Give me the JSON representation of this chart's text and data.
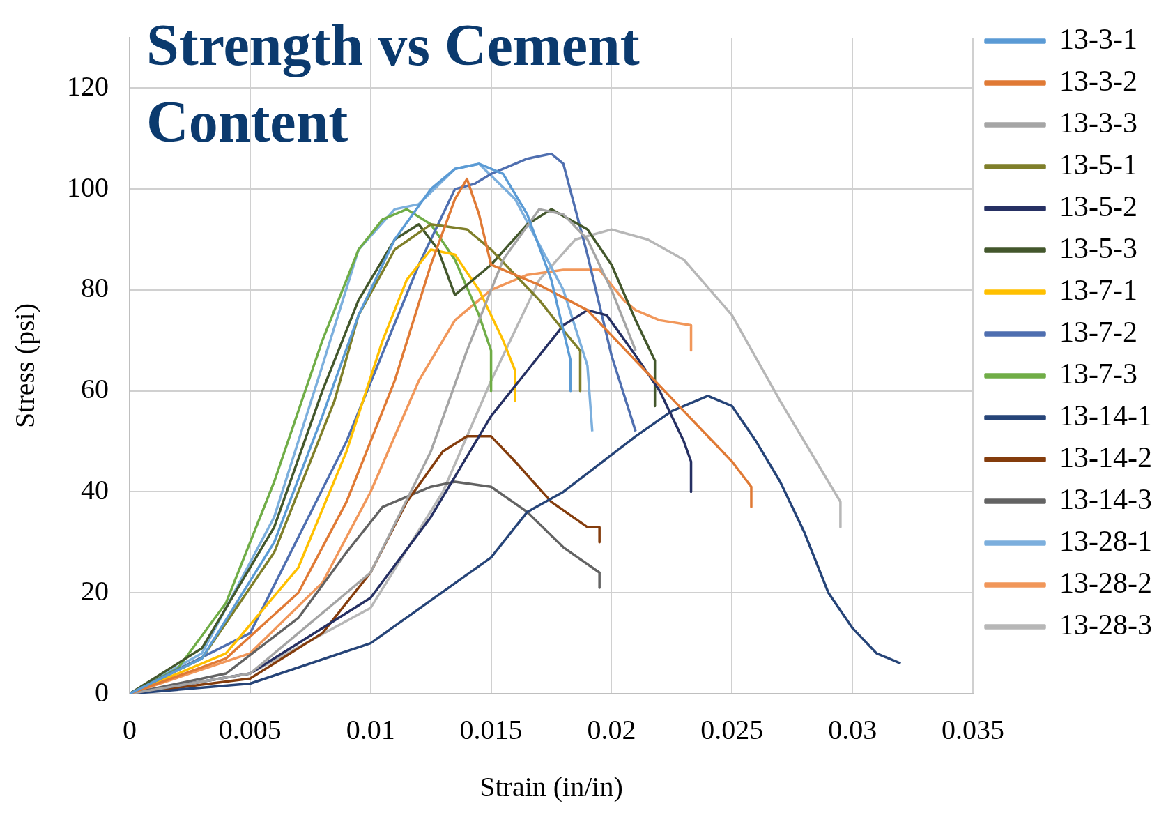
{
  "chart_data": {
    "type": "line",
    "title": "Strength vs Cement Content",
    "xlabel": "Strain (in/in)",
    "ylabel": "Stress (psi)",
    "xlim": [
      0,
      0.035
    ],
    "xticks": [
      0,
      0.005,
      0.01,
      0.015,
      0.02,
      0.025,
      0.03,
      0.035
    ],
    "ylim": [
      0,
      130
    ],
    "yticks": [
      0,
      20,
      40,
      60,
      80,
      100,
      120
    ],
    "grid": true,
    "legend": "right",
    "marker": "none",
    "line_style": "solid",
    "series": [
      {
        "name": "13-3-1",
        "color": "#5b9bd5",
        "x": [
          0,
          0.003,
          0.006,
          0.008,
          0.0095,
          0.011,
          0.0125,
          0.0135,
          0.0145,
          0.0155,
          0.0165,
          0.0175,
          0.018,
          0.0183,
          0.0183
        ],
        "values": [
          0,
          7,
          30,
          55,
          75,
          90,
          100,
          104,
          105,
          103,
          95,
          82,
          72,
          66,
          60
        ]
      },
      {
        "name": "13-3-2",
        "color": "#e07a35",
        "x": [
          0,
          0.004,
          0.007,
          0.009,
          0.011,
          0.0125,
          0.0135,
          0.014,
          0.0145,
          0.015,
          0.017,
          0.019,
          0.021,
          0.023,
          0.025,
          0.0258,
          0.0258
        ],
        "values": [
          0,
          7,
          20,
          38,
          62,
          85,
          98,
          102,
          95,
          85,
          81,
          76,
          66,
          56,
          46,
          41,
          37
        ]
      },
      {
        "name": "13-3-3",
        "color": "#a5a5a5",
        "x": [
          0,
          0.005,
          0.01,
          0.0125,
          0.014,
          0.0155,
          0.017,
          0.018,
          0.019,
          0.02,
          0.021
        ],
        "values": [
          0,
          4,
          24,
          48,
          68,
          86,
          96,
          95,
          90,
          80,
          68
        ]
      },
      {
        "name": "13-5-1",
        "color": "#7f7f2a",
        "x": [
          0,
          0.003,
          0.006,
          0.0085,
          0.0095,
          0.011,
          0.0125,
          0.014,
          0.015,
          0.016,
          0.017,
          0.018,
          0.0187,
          0.0187
        ],
        "values": [
          0,
          7,
          28,
          58,
          75,
          88,
          93,
          92,
          88,
          83,
          78,
          72,
          68,
          60
        ]
      },
      {
        "name": "13-5-2",
        "color": "#263063",
        "x": [
          0,
          0.005,
          0.01,
          0.0125,
          0.015,
          0.0165,
          0.018,
          0.019,
          0.0198,
          0.021,
          0.022,
          0.023,
          0.0233,
          0.0233
        ],
        "values": [
          0,
          4,
          19,
          35,
          55,
          64,
          73,
          76,
          75,
          67,
          60,
          50,
          46,
          40
        ]
      },
      {
        "name": "13-5-3",
        "color": "#43572c",
        "x": [
          0,
          0.003,
          0.006,
          0.008,
          0.0095,
          0.011,
          0.012,
          0.0128,
          0.0135,
          0.015,
          0.0165,
          0.0175,
          0.019,
          0.02,
          0.021,
          0.0218,
          0.0218
        ],
        "values": [
          0,
          9,
          33,
          60,
          78,
          90,
          93,
          88,
          79,
          85,
          93,
          96,
          92,
          85,
          74,
          66,
          57
        ]
      },
      {
        "name": "13-7-1",
        "color": "#ffc000",
        "x": [
          0,
          0.004,
          0.007,
          0.009,
          0.0105,
          0.0115,
          0.0125,
          0.0135,
          0.0145,
          0.0155,
          0.016,
          0.016
        ],
        "values": [
          0,
          8,
          25,
          48,
          70,
          82,
          88,
          87,
          80,
          70,
          64,
          58
        ]
      },
      {
        "name": "13-7-2",
        "color": "#4f6fb0",
        "x": [
          0,
          0.005,
          0.009,
          0.012,
          0.0135,
          0.0143,
          0.015,
          0.0165,
          0.0175,
          0.018,
          0.019,
          0.02,
          0.021
        ],
        "values": [
          0,
          12,
          50,
          85,
          100,
          101,
          103,
          106,
          107,
          105,
          87,
          67,
          52
        ]
      },
      {
        "name": "13-7-3",
        "color": "#70ad47",
        "x": [
          0,
          0.002,
          0.004,
          0.006,
          0.008,
          0.0095,
          0.0105,
          0.0115,
          0.0125,
          0.0135,
          0.0145,
          0.015,
          0.015
        ],
        "values": [
          0,
          5,
          18,
          42,
          70,
          88,
          94,
          96,
          93,
          86,
          75,
          68,
          60
        ]
      },
      {
        "name": "13-14-1",
        "color": "#264478",
        "x": [
          0,
          0.005,
          0.01,
          0.015,
          0.0165,
          0.018,
          0.021,
          0.0225,
          0.024,
          0.025,
          0.026,
          0.027,
          0.028,
          0.029,
          0.03,
          0.031,
          0.032
        ],
        "values": [
          0,
          2,
          10,
          27,
          36,
          40,
          51,
          56,
          59,
          57,
          50,
          42,
          32,
          20,
          13,
          8,
          6
        ]
      },
      {
        "name": "13-14-2",
        "color": "#843c0c",
        "x": [
          0,
          0.005,
          0.008,
          0.01,
          0.0115,
          0.013,
          0.014,
          0.015,
          0.016,
          0.0175,
          0.019,
          0.0195,
          0.0195
        ],
        "values": [
          0,
          3,
          12,
          24,
          38,
          48,
          51,
          51,
          46,
          38,
          33,
          33,
          30
        ]
      },
      {
        "name": "13-14-3",
        "color": "#636363",
        "x": [
          0,
          0.004,
          0.007,
          0.009,
          0.0105,
          0.0125,
          0.0135,
          0.015,
          0.0165,
          0.018,
          0.0195,
          0.0195
        ],
        "values": [
          0,
          4,
          15,
          28,
          37,
          41,
          42,
          41,
          36,
          29,
          24,
          21
        ]
      },
      {
        "name": "13-28-1",
        "color": "#7cafdd",
        "x": [
          0,
          0.003,
          0.006,
          0.008,
          0.0095,
          0.011,
          0.012,
          0.0135,
          0.0145,
          0.016,
          0.018,
          0.019,
          0.0192
        ],
        "values": [
          0,
          8,
          35,
          65,
          88,
          96,
          97,
          104,
          105,
          98,
          80,
          65,
          52
        ]
      },
      {
        "name": "13-28-2",
        "color": "#f1975a",
        "x": [
          0,
          0.005,
          0.008,
          0.01,
          0.012,
          0.0135,
          0.015,
          0.0165,
          0.018,
          0.0195,
          0.0205,
          0.021,
          0.022,
          0.0233,
          0.0233
        ],
        "values": [
          0,
          8,
          22,
          40,
          62,
          74,
          80,
          83,
          84,
          84,
          78,
          76,
          74,
          73,
          68
        ]
      },
      {
        "name": "13-28-3",
        "color": "#b7b7b7",
        "x": [
          0,
          0.005,
          0.01,
          0.013,
          0.015,
          0.017,
          0.0185,
          0.02,
          0.0215,
          0.023,
          0.025,
          0.027,
          0.029,
          0.0295,
          0.0295
        ],
        "values": [
          0,
          4,
          17,
          40,
          62,
          82,
          90,
          92,
          90,
          86,
          75,
          58,
          42,
          38,
          33
        ]
      }
    ]
  }
}
